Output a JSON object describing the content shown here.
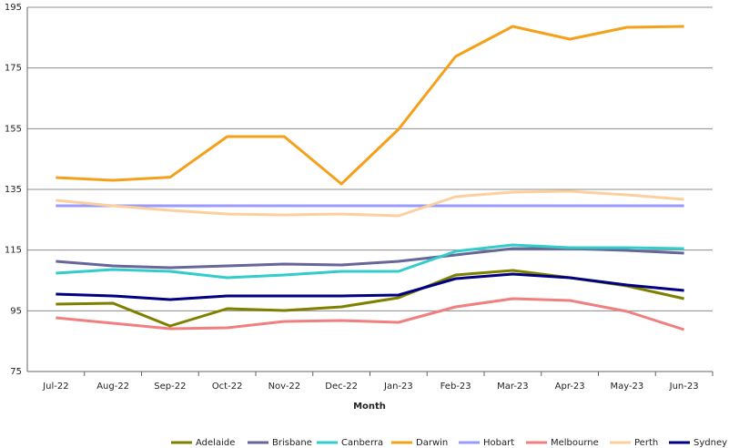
{
  "chart_data": {
    "type": "line",
    "x_label": "Month",
    "categories": [
      "Jul-22",
      "Aug-22",
      "Sep-22",
      "Oct-22",
      "Nov-22",
      "Dec-22",
      "Jan-23",
      "Feb-23",
      "Mar-23",
      "Apr-23",
      "May-23",
      "Jun-23"
    ],
    "ylim": [
      75,
      195
    ],
    "yticks": [
      75,
      95,
      115,
      135,
      155,
      175,
      195
    ],
    "grid": true,
    "legend": "bottom",
    "series": [
      {
        "name": "Adelaide",
        "color": "#808000",
        "values": [
          97.2,
          97.5,
          90,
          95.7,
          95.1,
          96.3,
          99.3,
          106.8,
          108.3,
          105.9,
          103.2,
          99
        ]
      },
      {
        "name": "Brisbane",
        "color": "#666699",
        "values": [
          111.3,
          109.8,
          109.2,
          109.8,
          110.4,
          110.1,
          111.3,
          113.4,
          115.5,
          115.5,
          114.9,
          114
        ]
      },
      {
        "name": "Canberra",
        "color": "#33cccc",
        "values": [
          107.4,
          108.6,
          108,
          105.9,
          106.8,
          108,
          108,
          114.6,
          116.7,
          115.8,
          115.8,
          115.5
        ]
      },
      {
        "name": "Darwin",
        "color": "#f5a01a",
        "values": [
          138.9,
          138,
          139,
          152.4,
          152.4,
          136.8,
          154.8,
          178.8,
          188.7,
          184.5,
          188.4,
          188.7
        ]
      },
      {
        "name": "Hobart",
        "color": "#9999ff",
        "values": [
          129.6,
          129.6,
          129.6,
          129.6,
          129.6,
          129.6,
          129.6,
          129.6,
          129.6,
          129.6,
          129.6,
          129.6
        ]
      },
      {
        "name": "Melbourne",
        "color": "#f08080",
        "values": [
          92.7,
          90.9,
          89.1,
          89.4,
          91.5,
          91.8,
          91.2,
          96.3,
          99,
          98.4,
          94.8,
          88.8
        ]
      },
      {
        "name": "Perth",
        "color": "#fcd09e",
        "values": [
          131.4,
          129.6,
          128.1,
          126.9,
          126.6,
          126.9,
          126.3,
          132.6,
          134.1,
          134.4,
          133.2,
          131.7
        ]
      },
      {
        "name": "Sydney",
        "color": "#000080",
        "values": [
          100.5,
          99.9,
          98.7,
          99.9,
          99.9,
          99.9,
          100.2,
          105.6,
          107.1,
          105.9,
          103.5,
          101.7
        ]
      }
    ]
  }
}
